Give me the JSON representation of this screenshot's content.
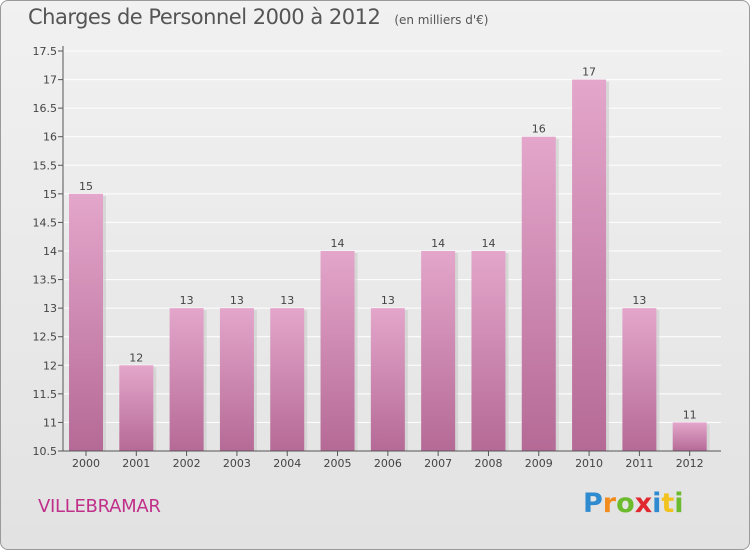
{
  "chart_data": {
    "type": "bar",
    "title": "Charges de Personnel 2000 à 2012",
    "subtitle": "(en milliers d'€)",
    "categories": [
      "2000",
      "2001",
      "2002",
      "2003",
      "2004",
      "2005",
      "2006",
      "2007",
      "2008",
      "2009",
      "2010",
      "2011",
      "2012"
    ],
    "values": [
      15,
      12,
      13,
      13,
      13,
      14,
      13,
      14,
      14,
      16,
      17,
      13,
      11
    ],
    "data_labels": [
      "15",
      "12",
      "13",
      "13",
      "13",
      "14",
      "13",
      "14",
      "14",
      "16",
      "17",
      "13",
      "11"
    ],
    "ylim": [
      10.5,
      17.5
    ],
    "yticks": [
      10.5,
      11,
      11.5,
      12,
      12.5,
      13,
      13.5,
      14,
      14.5,
      15,
      15.5,
      16,
      16.5,
      17,
      17.5
    ],
    "ytick_labels": [
      "10.5",
      "11",
      "11.5",
      "12",
      "12.5",
      "13",
      "13.5",
      "14",
      "14.5",
      "15",
      "15.5",
      "16",
      "16.5",
      "17",
      "17.5"
    ],
    "grid": "horizontal",
    "legend": "none",
    "bar_color_top": "#e4a6cb",
    "bar_color_bottom": "#b56a96",
    "xlabel": "",
    "ylabel": ""
  },
  "footer": {
    "commune": "VILLEBRAMAR",
    "commune_color": "#c0308a",
    "brand_letters": [
      "P",
      "r",
      "o",
      "x",
      "i",
      "t",
      "i"
    ],
    "brand_colors": [
      "#2e8bd0",
      "#f28c1e",
      "#6cbb2d",
      "#e0282e",
      "#2e8bd0",
      "#f2c21e",
      "#6cbb2d"
    ]
  }
}
